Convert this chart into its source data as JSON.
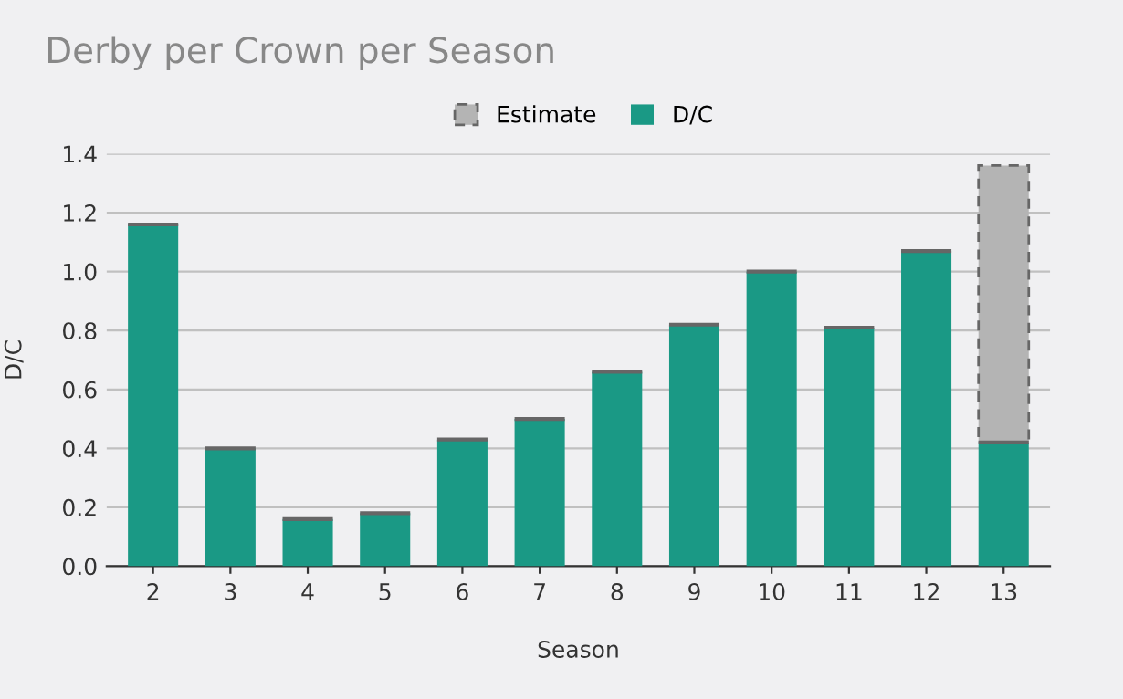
{
  "chart_data": {
    "type": "bar",
    "title": "Derby per Crown per Season",
    "xlabel": "Season",
    "ylabel": "D/C",
    "categories": [
      "2",
      "3",
      "4",
      "5",
      "6",
      "7",
      "8",
      "9",
      "10",
      "11",
      "12",
      "13"
    ],
    "stacked": true,
    "series": [
      {
        "name": "D/C",
        "color": "#1a9985",
        "values": [
          1.16,
          0.4,
          0.16,
          0.18,
          0.43,
          0.5,
          0.66,
          0.82,
          1.0,
          0.81,
          1.07,
          0.42
        ]
      },
      {
        "name": "Estimate",
        "color": "#b4b4b4",
        "line_style": "dashed",
        "values": [
          null,
          null,
          null,
          null,
          null,
          null,
          null,
          null,
          null,
          null,
          null,
          0.94
        ]
      }
    ],
    "ylim": [
      0,
      1.4
    ],
    "yticks": [
      {
        "value": 0,
        "label": "0.0"
      },
      {
        "value": 0.2,
        "label": "0.2"
      },
      {
        "value": 0.4,
        "label": "0.4"
      },
      {
        "value": 0.6,
        "label": "0.6"
      },
      {
        "value": 0.8,
        "label": "0.8"
      },
      {
        "value": 1.0,
        "label": "1.0"
      },
      {
        "value": 1.2,
        "label": "1.2"
      },
      {
        "value": 1.4,
        "label": "1.4"
      }
    ],
    "grid": "y",
    "legend": "top"
  }
}
